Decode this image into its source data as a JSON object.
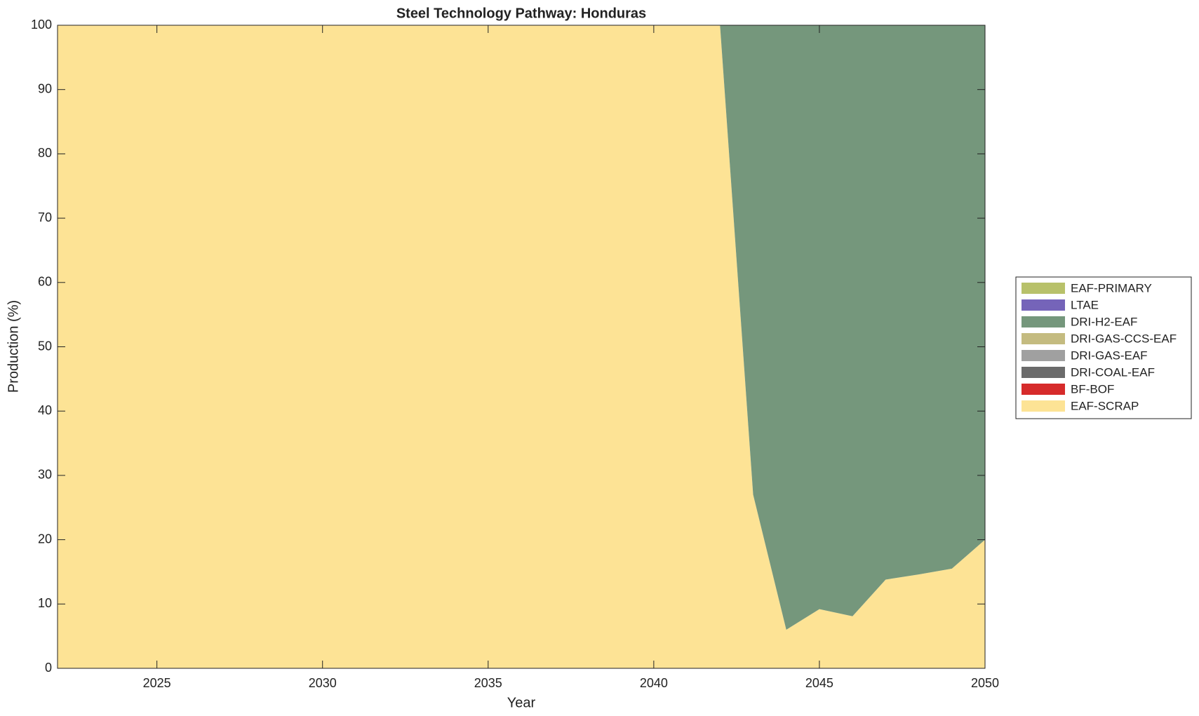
{
  "chart_data": {
    "type": "stacked_area",
    "title": "Steel Technology Pathway: Honduras",
    "x_label": "Year",
    "y_label": "Production (%)",
    "x": [
      2022,
      2023,
      2024,
      2025,
      2026,
      2027,
      2028,
      2029,
      2030,
      2031,
      2032,
      2033,
      2034,
      2035,
      2036,
      2037,
      2038,
      2039,
      2040,
      2041,
      2042,
      2043,
      2044,
      2045,
      2046,
      2047,
      2048,
      2049,
      2050
    ],
    "series": [
      {
        "name": "EAF-SCRAP",
        "color": "#fde395",
        "values": [
          100,
          100,
          100,
          100,
          100,
          100,
          100,
          100,
          100,
          100,
          100,
          100,
          100,
          100,
          100,
          100,
          100,
          100,
          100,
          100,
          100,
          27,
          6,
          9.2,
          8.1,
          13.8,
          14.6,
          15.5,
          20
        ]
      },
      {
        "name": "BF-BOF",
        "color": "#d62b2b",
        "values": [
          0,
          0,
          0,
          0,
          0,
          0,
          0,
          0,
          0,
          0,
          0,
          0,
          0,
          0,
          0,
          0,
          0,
          0,
          0,
          0,
          0,
          0,
          0,
          0,
          0,
          0,
          0,
          0,
          0
        ]
      },
      {
        "name": "DRI-COAL-EAF",
        "color": "#6b6b6b",
        "values": [
          0,
          0,
          0,
          0,
          0,
          0,
          0,
          0,
          0,
          0,
          0,
          0,
          0,
          0,
          0,
          0,
          0,
          0,
          0,
          0,
          0,
          0,
          0,
          0,
          0,
          0,
          0,
          0,
          0
        ]
      },
      {
        "name": "DRI-GAS-EAF",
        "color": "#a0a0a0",
        "values": [
          0,
          0,
          0,
          0,
          0,
          0,
          0,
          0,
          0,
          0,
          0,
          0,
          0,
          0,
          0,
          0,
          0,
          0,
          0,
          0,
          0,
          0,
          0,
          0,
          0,
          0,
          0,
          0,
          0
        ]
      },
      {
        "name": "DRI-GAS-CCS-EAF",
        "color": "#c4bb80",
        "values": [
          0,
          0,
          0,
          0,
          0,
          0,
          0,
          0,
          0,
          0,
          0,
          0,
          0,
          0,
          0,
          0,
          0,
          0,
          0,
          0,
          0,
          0,
          0,
          0,
          0,
          0,
          0,
          0,
          0
        ]
      },
      {
        "name": "DRI-H2-EAF",
        "color": "#75977c",
        "values": [
          0,
          0,
          0,
          0,
          0,
          0,
          0,
          0,
          0,
          0,
          0,
          0,
          0,
          0,
          0,
          0,
          0,
          0,
          0,
          0,
          0,
          73,
          94,
          90.8,
          91.9,
          86.2,
          85.4,
          84.5,
          80
        ]
      },
      {
        "name": "LTAE",
        "color": "#7564b9",
        "values": [
          0,
          0,
          0,
          0,
          0,
          0,
          0,
          0,
          0,
          0,
          0,
          0,
          0,
          0,
          0,
          0,
          0,
          0,
          0,
          0,
          0,
          0,
          0,
          0,
          0,
          0,
          0,
          0,
          0
        ]
      },
      {
        "name": "EAF-PRIMARY",
        "color": "#b8c16a",
        "values": [
          0,
          0,
          0,
          0,
          0,
          0,
          0,
          0,
          0,
          0,
          0,
          0,
          0,
          0,
          0,
          0,
          0,
          0,
          0,
          0,
          0,
          0,
          0,
          0,
          0,
          0,
          0,
          0,
          0
        ]
      }
    ],
    "xlim": [
      2022,
      2050
    ],
    "ylim": [
      0,
      100
    ],
    "xticks": [
      2025,
      2030,
      2035,
      2040,
      2045,
      2050
    ],
    "yticks": [
      0,
      10,
      20,
      30,
      40,
      50,
      60,
      70,
      80,
      90,
      100
    ],
    "legend": "right"
  }
}
